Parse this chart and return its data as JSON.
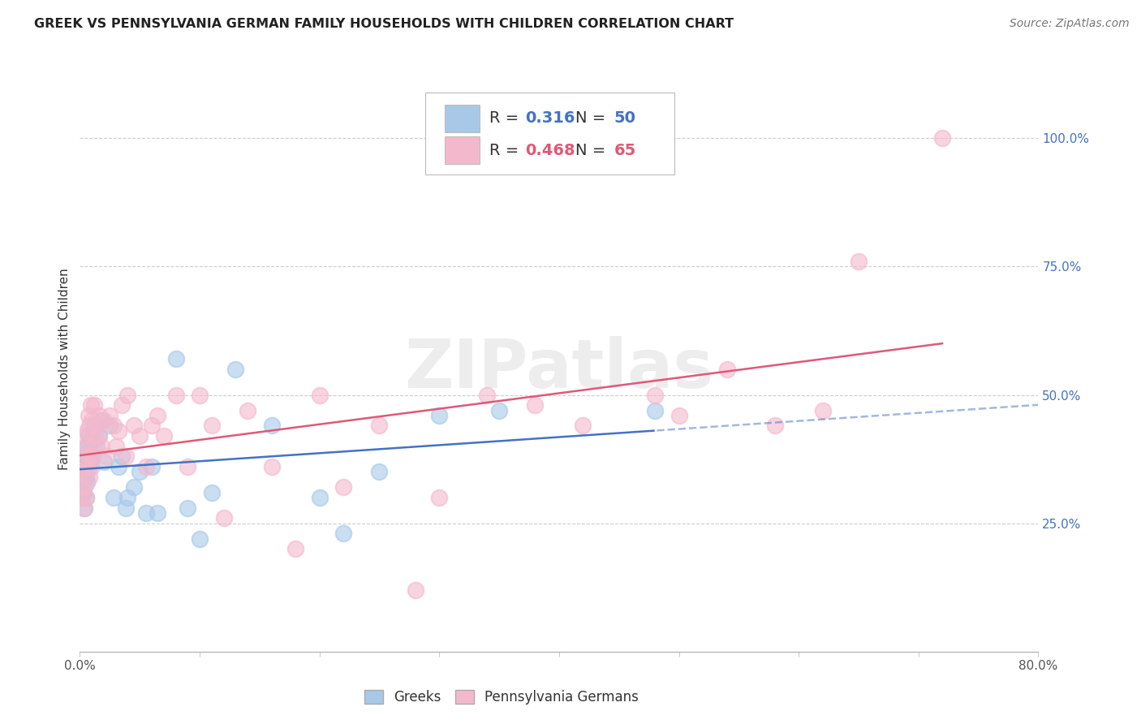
{
  "title": "GREEK VS PENNSYLVANIA GERMAN FAMILY HOUSEHOLDS WITH CHILDREN CORRELATION CHART",
  "source": "Source: ZipAtlas.com",
  "ylabel": "Family Households with Children",
  "xlim": [
    0.0,
    0.8
  ],
  "ylim": [
    0.0,
    1.1
  ],
  "xticks": [
    0.0,
    0.1,
    0.2,
    0.3,
    0.4,
    0.5,
    0.6,
    0.7,
    0.8
  ],
  "xticklabels": [
    "0.0%",
    "",
    "",
    "",
    "",
    "",
    "",
    "",
    "80.0%"
  ],
  "ytick_positions": [
    0.25,
    0.5,
    0.75,
    1.0
  ],
  "ytick_labels": [
    "25.0%",
    "50.0%",
    "75.0%",
    "100.0%"
  ],
  "greek_color": "#a8c8e8",
  "pg_color": "#f4b8cc",
  "greek_line_color": "#4472c4",
  "pg_line_color": "#e05878",
  "greek_R": 0.316,
  "greek_N": 50,
  "pg_R": 0.468,
  "pg_N": 65,
  "watermark": "ZIPatlas",
  "legend_label_greek": "Greeks",
  "legend_label_pg": "Pennsylvania Germans",
  "greek_x": [
    0.001,
    0.001,
    0.002,
    0.002,
    0.003,
    0.003,
    0.003,
    0.004,
    0.004,
    0.005,
    0.005,
    0.005,
    0.006,
    0.006,
    0.007,
    0.007,
    0.008,
    0.008,
    0.009,
    0.009,
    0.01,
    0.011,
    0.012,
    0.014,
    0.016,
    0.018,
    0.02,
    0.025,
    0.028,
    0.032,
    0.035,
    0.038,
    0.04,
    0.045,
    0.05,
    0.055,
    0.06,
    0.065,
    0.08,
    0.09,
    0.1,
    0.11,
    0.13,
    0.16,
    0.2,
    0.22,
    0.25,
    0.3,
    0.35,
    0.48
  ],
  "greek_y": [
    0.32,
    0.35,
    0.3,
    0.34,
    0.31,
    0.35,
    0.36,
    0.28,
    0.38,
    0.3,
    0.34,
    0.38,
    0.33,
    0.4,
    0.38,
    0.42,
    0.36,
    0.4,
    0.37,
    0.41,
    0.38,
    0.43,
    0.44,
    0.4,
    0.42,
    0.45,
    0.37,
    0.44,
    0.3,
    0.36,
    0.38,
    0.28,
    0.3,
    0.32,
    0.35,
    0.27,
    0.36,
    0.27,
    0.57,
    0.28,
    0.22,
    0.31,
    0.55,
    0.44,
    0.3,
    0.23,
    0.35,
    0.46,
    0.47,
    0.47
  ],
  "pg_x": [
    0.001,
    0.001,
    0.002,
    0.002,
    0.003,
    0.003,
    0.004,
    0.004,
    0.005,
    0.005,
    0.006,
    0.006,
    0.007,
    0.007,
    0.008,
    0.008,
    0.009,
    0.009,
    0.01,
    0.01,
    0.011,
    0.012,
    0.013,
    0.014,
    0.015,
    0.016,
    0.018,
    0.02,
    0.022,
    0.025,
    0.028,
    0.03,
    0.032,
    0.035,
    0.038,
    0.04,
    0.045,
    0.05,
    0.055,
    0.06,
    0.065,
    0.07,
    0.08,
    0.09,
    0.1,
    0.11,
    0.12,
    0.14,
    0.16,
    0.18,
    0.2,
    0.22,
    0.25,
    0.28,
    0.3,
    0.34,
    0.38,
    0.42,
    0.48,
    0.5,
    0.54,
    0.58,
    0.62,
    0.65,
    0.72
  ],
  "pg_y": [
    0.32,
    0.35,
    0.3,
    0.35,
    0.28,
    0.38,
    0.32,
    0.42,
    0.3,
    0.4,
    0.36,
    0.43,
    0.38,
    0.46,
    0.34,
    0.44,
    0.38,
    0.48,
    0.36,
    0.45,
    0.4,
    0.48,
    0.42,
    0.44,
    0.42,
    0.46,
    0.4,
    0.45,
    0.38,
    0.46,
    0.44,
    0.4,
    0.43,
    0.48,
    0.38,
    0.5,
    0.44,
    0.42,
    0.36,
    0.44,
    0.46,
    0.42,
    0.5,
    0.36,
    0.5,
    0.44,
    0.26,
    0.47,
    0.36,
    0.2,
    0.5,
    0.32,
    0.44,
    0.12,
    0.3,
    0.5,
    0.48,
    0.44,
    0.5,
    0.46,
    0.55,
    0.44,
    0.47,
    0.76,
    1.0
  ]
}
